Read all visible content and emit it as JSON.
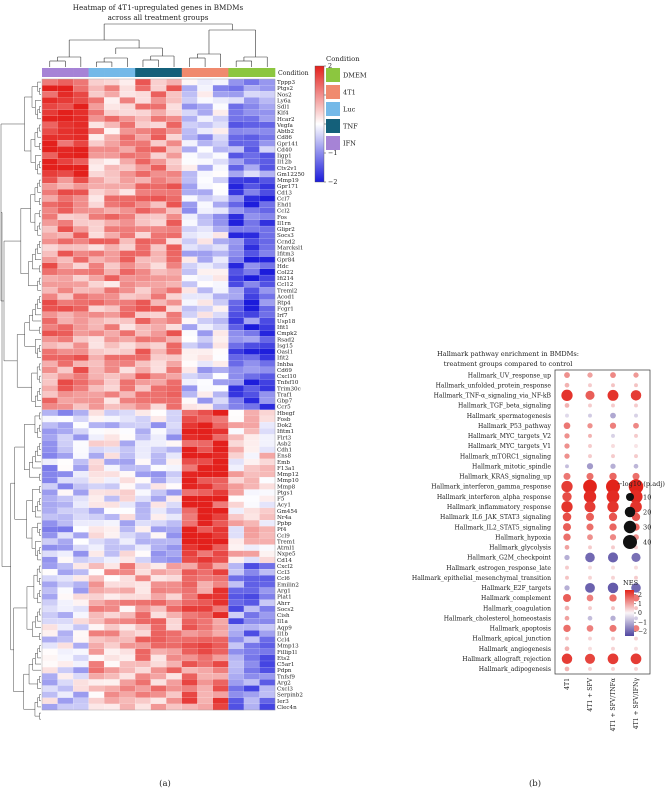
{
  "chart_data": [
    {
      "type": "heatmap",
      "panel_label": "(a)",
      "title": "Heatmap of 4T1-upregulated genes in BMDMs",
      "subtitle": "across all treatment groups",
      "legend_title": "Condition",
      "legend": [
        {
          "name": "DMEM",
          "color": "#8cc63f"
        },
        {
          "name": "4T1",
          "color": "#f08a6e"
        },
        {
          "name": "Luc",
          "color": "#74b9e8"
        },
        {
          "name": "TNF",
          "color": "#14607a"
        },
        {
          "name": "IFN",
          "color": "#a683d6"
        }
      ],
      "column_groups": [
        {
          "condition": "IFN",
          "n": 3
        },
        {
          "condition": "Luc",
          "n": 3
        },
        {
          "condition": "TNF",
          "n": 3
        },
        {
          "condition": "4T1",
          "n": 3
        },
        {
          "condition": "DMEM",
          "n": 3
        }
      ],
      "colorbar": {
        "min": -2,
        "max": 2,
        "ticks": [
          2,
          1,
          0,
          -1,
          -2
        ],
        "low": "#1a1adb",
        "mid": "#ffffff",
        "high": "#e3201c"
      },
      "genes": [
        "Tppp3",
        "Ptgs2",
        "Nos2",
        "Ly6a",
        "Sdl1",
        "Klf4",
        "Hcar2",
        "Vegfa",
        "Abtb2",
        "Cd86",
        "Gpr141",
        "Cd40",
        "Iigp1",
        "Il12b",
        "Ctv2v1",
        "Gm12250",
        "Mmp19",
        "Gpr171",
        "Cd13",
        "Ccl7",
        "Ehd1",
        "Ccl2",
        "Fos",
        "Il1rn",
        "Glipr2",
        "Socs3",
        "Ccnd2",
        "Marcksl1",
        "Ifitm3",
        "Gpr84",
        "Hdc",
        "Col22",
        "Ifi214",
        "Ccl12",
        "Treml2",
        "Acod1",
        "Rtp4",
        "Fcgr1",
        "Irf7",
        "Usp18",
        "Ifit1",
        "Cmpk2",
        "Rsad2",
        "Isg15",
        "Oasl1",
        "Ifit2",
        "Inhba",
        "Cd69",
        "Cxcl10",
        "Tnfsf10",
        "Trim30c",
        "Traf1",
        "Gbp7",
        "Ccr5",
        "Hbegf",
        "Fosb",
        "Dok2",
        "Ifitm1",
        "Flrt3",
        "Asb2",
        "Cdh1",
        "Ens8",
        "Emb",
        "F13a1",
        "Mmp12",
        "Mmp10",
        "Mmp8",
        "Ptgs1",
        "F5",
        "Acy1",
        "Gm454",
        "Nr4a",
        "Ppbp",
        "Pf4",
        "Ccl9",
        "Trem1",
        "Atrnl1",
        "Nxpe5",
        "Cd14",
        "Cxcl2",
        "Ccl3",
        "Ccl6",
        "Emilin2",
        "Arg1",
        "Plat1",
        "Ahrr",
        "Socs2",
        "Cish",
        "Il1a",
        "Aqp9",
        "Il1b",
        "Ccl4",
        "Mmp13",
        "Fillip1l",
        "Ets2",
        "C5ar1",
        "Pdpn",
        "Tnfsf9",
        "Arg2",
        "Cxcl3",
        "Serpinb2",
        "Ier3",
        "Clec4n"
      ],
      "cluster_patterns": [
        {
          "from": 0,
          "to": 15,
          "IFN": 2.0,
          "Luc": 0.8,
          "TNF": 1.0,
          "4T1": -0.5,
          "DMEM": -1.0
        },
        {
          "from": 16,
          "to": 53,
          "IFN": 1.1,
          "Luc": 0.9,
          "TNF": 1.0,
          "4T1": -0.4,
          "DMEM": -1.5
        },
        {
          "from": 54,
          "to": 78,
          "IFN": -0.6,
          "Luc": -0.2,
          "TNF": -0.4,
          "4T1": 2.0,
          "DMEM": 0.3
        },
        {
          "from": 79,
          "to": 104,
          "IFN": -0.3,
          "Luc": 0.7,
          "TNF": 0.9,
          "4T1": 1.4,
          "DMEM": -1.1
        }
      ]
    },
    {
      "type": "scatter",
      "subtype": "dot-plot",
      "panel_label": "(b)",
      "title": "Hallmark pathway enrichment in BMDMs:",
      "subtitle": "treatment groups compared to control",
      "columns": [
        "4T1",
        "4T1 + SFV",
        "4T1 + SFV/TNFα",
        "4T1 + SFV/IFNγ"
      ],
      "size_legend_title": "−log10 (p.adj)",
      "size_legend": [
        10,
        20,
        30,
        40
      ],
      "color_legend_title": "NES",
      "color_ticks": [
        2,
        1,
        0,
        -1,
        -2
      ],
      "color_range": [
        -2.5,
        2.5
      ],
      "pathways": [
        {
          "name": "Hallmark_UV_response_up",
          "nes": [
            1.2,
            1.0,
            1.3,
            1.1
          ],
          "size": [
            4,
            3,
            4,
            3
          ]
        },
        {
          "name": "Hallmark_unfolded_protein_response",
          "nes": [
            0.8,
            0.5,
            0.6,
            0.6
          ],
          "size": [
            2,
            1,
            1,
            1
          ]
        },
        {
          "name": "Hallmark_TNF-α_signaling_via_NF-kB",
          "nes": [
            2.3,
            1.8,
            2.3,
            2.2
          ],
          "size": [
            24,
            14,
            22,
            20
          ]
        },
        {
          "name": "Hallmark_TGF_beta_signaling",
          "nes": [
            0.8,
            0.5,
            0.5,
            0.5
          ],
          "size": [
            2,
            1,
            1,
            1
          ]
        },
        {
          "name": "Hallmark_spermatogenesis",
          "nes": [
            -0.4,
            -0.6,
            -1.1,
            -0.5
          ],
          "size": [
            1,
            1,
            4,
            1
          ]
        },
        {
          "name": "Hallmark_P53_pathway",
          "nes": [
            1.5,
            1.2,
            1.4,
            1.3
          ],
          "size": [
            6,
            3,
            5,
            4
          ]
        },
        {
          "name": "Hallmark_MYC_targets_V2",
          "nes": [
            1.2,
            0.8,
            -0.5,
            0.5
          ],
          "size": [
            3,
            1,
            1,
            1
          ]
        },
        {
          "name": "Hallmark_MYC_targets_V1",
          "nes": [
            1.2,
            0.5,
            0.3,
            0.2
          ],
          "size": [
            3,
            1,
            1,
            1
          ]
        },
        {
          "name": "Hallmark_mTORC1_signaling",
          "nes": [
            1.2,
            0.5,
            0.5,
            0.5
          ],
          "size": [
            3,
            1,
            1,
            1
          ]
        },
        {
          "name": "Hallmark_mitotic_spindle",
          "nes": [
            -0.8,
            -1.3,
            -1.0,
            -0.9
          ],
          "size": [
            1,
            5,
            3,
            2
          ]
        },
        {
          "name": "Hallmark_KRAS_signaling_up",
          "nes": [
            1.5,
            1.6,
            1.7,
            1.6
          ],
          "size": [
            7,
            7,
            8,
            7
          ]
        },
        {
          "name": "Hallmark_interferon_gamma_response",
          "nes": [
            2.2,
            2.5,
            2.5,
            2.5
          ],
          "size": [
            24,
            38,
            40,
            44
          ]
        },
        {
          "name": "Hallmark_interferon_alpha_response",
          "nes": [
            2.0,
            2.4,
            2.4,
            2.4
          ],
          "size": [
            15,
            30,
            32,
            34
          ]
        },
        {
          "name": "Hallmark_inflammatory_response",
          "nes": [
            2.3,
            2.2,
            2.3,
            2.3
          ],
          "size": [
            24,
            22,
            24,
            26
          ]
        },
        {
          "name": "Hallmark_IL6_JAK_STAT3_signaling",
          "nes": [
            2.0,
            1.8,
            1.9,
            1.9
          ],
          "size": [
            12,
            10,
            11,
            11
          ]
        },
        {
          "name": "Hallmark_IL2_STAT5_signaling",
          "nes": [
            1.8,
            1.6,
            1.7,
            1.7
          ],
          "size": [
            10,
            7,
            8,
            8
          ]
        },
        {
          "name": "Hallmark_hypoxia",
          "nes": [
            1.6,
            1.2,
            1.3,
            1.2
          ],
          "size": [
            8,
            4,
            5,
            4
          ]
        },
        {
          "name": "Hallmark_glycolysis",
          "nes": [
            1.0,
            0.5,
            0.5,
            0.5
          ],
          "size": [
            2,
            1,
            1,
            1
          ]
        },
        {
          "name": "Hallmark_G2M_checkpoint",
          "nes": [
            -1.0,
            -2.0,
            -2.1,
            -1.9
          ],
          "size": [
            3,
            16,
            18,
            14
          ]
        },
        {
          "name": "Hallmark_estrogen_response_late",
          "nes": [
            0.5,
            0.3,
            0.3,
            0.3
          ],
          "size": [
            1,
            1,
            1,
            1
          ]
        },
        {
          "name": "Hallmark_epithelial_mesenchymal_transition",
          "nes": [
            0.6,
            0.4,
            0.4,
            0.5
          ],
          "size": [
            1,
            1,
            1,
            1
          ]
        },
        {
          "name": "Hallmark_E2F_targets",
          "nes": [
            -1.0,
            -2.1,
            -2.2,
            -2.0
          ],
          "size": [
            3,
            17,
            20,
            16
          ]
        },
        {
          "name": "Hallmark_complement",
          "nes": [
            1.8,
            1.4,
            1.6,
            1.5
          ],
          "size": [
            10,
            6,
            8,
            7
          ]
        },
        {
          "name": "Hallmark_coagulation",
          "nes": [
            0.8,
            0.5,
            0.6,
            0.6
          ],
          "size": [
            2,
            1,
            1,
            1
          ]
        },
        {
          "name": "Hallmark_cholesterol_homeostasis",
          "nes": [
            1.0,
            -0.8,
            -1.0,
            -0.6
          ],
          "size": [
            2,
            2,
            3,
            1
          ]
        },
        {
          "name": "Hallmark_apoptosis",
          "nes": [
            1.6,
            1.4,
            1.5,
            1.4
          ],
          "size": [
            8,
            6,
            7,
            6
          ]
        },
        {
          "name": "Hallmark_apical_junction",
          "nes": [
            0.6,
            0.4,
            0.5,
            0.4
          ],
          "size": [
            1,
            1,
            1,
            1
          ]
        },
        {
          "name": "Hallmark_angiogenesis",
          "nes": [
            0.8,
            0.3,
            0.4,
            0.3
          ],
          "size": [
            2,
            1,
            1,
            1
          ]
        },
        {
          "name": "Hallmark_allograft_rejection",
          "nes": [
            2.2,
            2.1,
            2.2,
            2.2
          ],
          "size": [
            20,
            18,
            21,
            21
          ]
        },
        {
          "name": "Hallmark_adipogenesis",
          "nes": [
            0.8,
            0.4,
            0.4,
            0.4
          ],
          "size": [
            2,
            1,
            1,
            1
          ]
        }
      ]
    }
  ]
}
